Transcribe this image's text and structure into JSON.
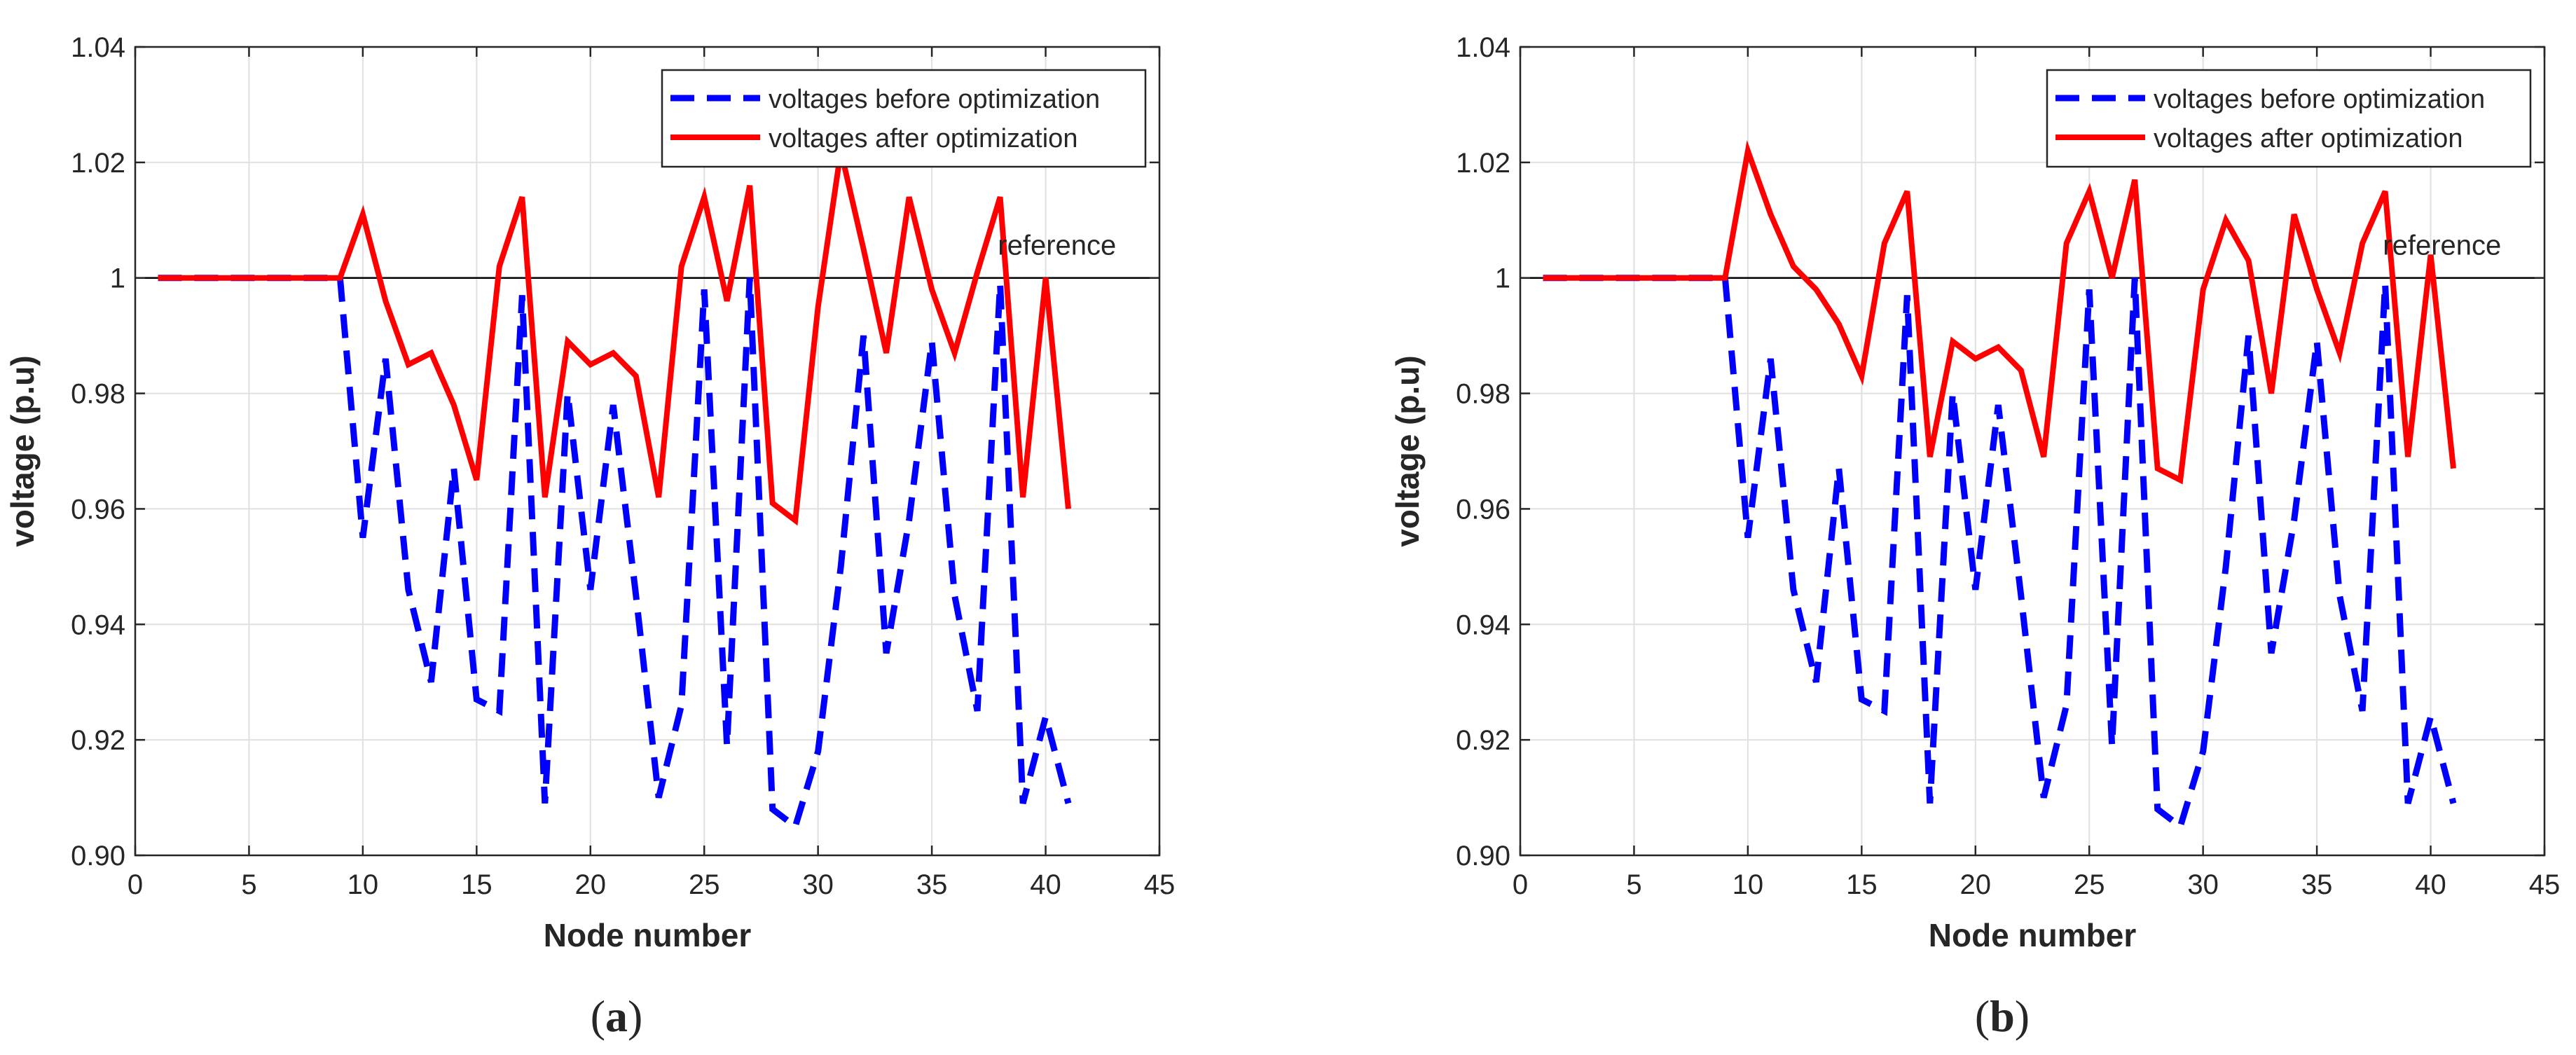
{
  "figure": {
    "panels": [
      "(a)",
      "(b)"
    ]
  },
  "colors": {
    "before": "#0000ff",
    "after": "#ff0000",
    "reference": "#000000",
    "grid": "#e0e0e0",
    "axis": "#262626"
  },
  "chart_data": [
    {
      "type": "line",
      "panel": "a",
      "caption_letter": "a",
      "xlabel": "Node number",
      "ylabel": "voltage (p.u)",
      "xlim": [
        0,
        45
      ],
      "ylim": [
        0.9,
        1.04
      ],
      "xticks": [
        0,
        5,
        10,
        15,
        20,
        25,
        30,
        35,
        40,
        45
      ],
      "yticks": [
        0.9,
        0.92,
        0.94,
        0.96,
        0.98,
        1,
        1.02,
        1.04
      ],
      "grid": true,
      "legend_position": "top-right",
      "annotation": {
        "text": "reference",
        "x": 40.5,
        "y": 1.004
      },
      "reference_line": {
        "y": 1
      },
      "x": [
        1,
        2,
        3,
        4,
        5,
        6,
        7,
        8,
        9,
        10,
        11,
        12,
        13,
        14,
        15,
        16,
        17,
        18,
        19,
        20,
        21,
        22,
        23,
        24,
        25,
        26,
        27,
        28,
        29,
        30,
        31,
        32,
        33,
        34,
        35,
        36,
        37,
        38,
        39,
        40,
        41
      ],
      "series": [
        {
          "name": "voltages before optimization",
          "style": "dashed",
          "values": [
            1.0,
            1.0,
            1.0,
            1.0,
            1.0,
            1.0,
            1.0,
            1.0,
            1.0,
            0.955,
            0.986,
            0.946,
            0.93,
            0.967,
            0.927,
            0.925,
            0.997,
            0.909,
            0.98,
            0.946,
            0.978,
            0.945,
            0.91,
            0.926,
            0.998,
            0.919,
            1.0,
            0.908,
            0.905,
            0.918,
            0.95,
            0.99,
            0.935,
            0.958,
            0.989,
            0.945,
            0.925,
            0.999,
            0.909,
            0.924,
            0.909
          ]
        },
        {
          "name": "voltages after optimization",
          "style": "solid",
          "values": [
            1.0,
            1.0,
            1.0,
            1.0,
            1.0,
            1.0,
            1.0,
            1.0,
            1.0,
            1.011,
            0.996,
            0.985,
            0.987,
            0.978,
            0.965,
            1.002,
            1.014,
            0.962,
            0.989,
            0.985,
            0.987,
            0.983,
            0.962,
            1.002,
            1.014,
            0.996,
            1.016,
            0.961,
            0.958,
            0.995,
            1.022,
            1.005,
            0.987,
            1.014,
            0.998,
            0.987,
            1.001,
            1.014,
            0.962,
            1.0,
            0.96
          ]
        }
      ]
    },
    {
      "type": "line",
      "panel": "b",
      "caption_letter": "b",
      "xlabel": "Node number",
      "ylabel": "voltage (p.u)",
      "xlim": [
        0,
        45
      ],
      "ylim": [
        0.9,
        1.04
      ],
      "xticks": [
        0,
        5,
        10,
        15,
        20,
        25,
        30,
        35,
        40,
        45
      ],
      "yticks": [
        0.9,
        0.92,
        0.94,
        0.96,
        0.98,
        1,
        1.02,
        1.04
      ],
      "grid": true,
      "legend_position": "top-right",
      "annotation": {
        "text": "reference",
        "x": 40.5,
        "y": 1.004
      },
      "reference_line": {
        "y": 1
      },
      "x": [
        1,
        2,
        3,
        4,
        5,
        6,
        7,
        8,
        9,
        10,
        11,
        12,
        13,
        14,
        15,
        16,
        17,
        18,
        19,
        20,
        21,
        22,
        23,
        24,
        25,
        26,
        27,
        28,
        29,
        30,
        31,
        32,
        33,
        34,
        35,
        36,
        37,
        38,
        39,
        40,
        41
      ],
      "series": [
        {
          "name": "voltages before optimization",
          "style": "dashed",
          "values": [
            1.0,
            1.0,
            1.0,
            1.0,
            1.0,
            1.0,
            1.0,
            1.0,
            1.0,
            0.955,
            0.986,
            0.946,
            0.93,
            0.967,
            0.927,
            0.925,
            0.997,
            0.909,
            0.98,
            0.946,
            0.978,
            0.945,
            0.91,
            0.926,
            0.998,
            0.919,
            1.0,
            0.908,
            0.905,
            0.918,
            0.95,
            0.99,
            0.935,
            0.958,
            0.989,
            0.945,
            0.925,
            0.999,
            0.909,
            0.924,
            0.909
          ]
        },
        {
          "name": "voltages after optimization",
          "style": "solid",
          "values": [
            1.0,
            1.0,
            1.0,
            1.0,
            1.0,
            1.0,
            1.0,
            1.0,
            1.0,
            1.022,
            1.011,
            1.002,
            0.998,
            0.992,
            0.983,
            1.006,
            1.015,
            0.969,
            0.989,
            0.986,
            0.988,
            0.984,
            0.969,
            1.006,
            1.015,
            1.0,
            1.017,
            0.967,
            0.965,
            0.998,
            1.01,
            1.003,
            0.98,
            1.011,
            0.998,
            0.987,
            1.006,
            1.015,
            0.969,
            1.004,
            0.967
          ]
        }
      ]
    }
  ]
}
